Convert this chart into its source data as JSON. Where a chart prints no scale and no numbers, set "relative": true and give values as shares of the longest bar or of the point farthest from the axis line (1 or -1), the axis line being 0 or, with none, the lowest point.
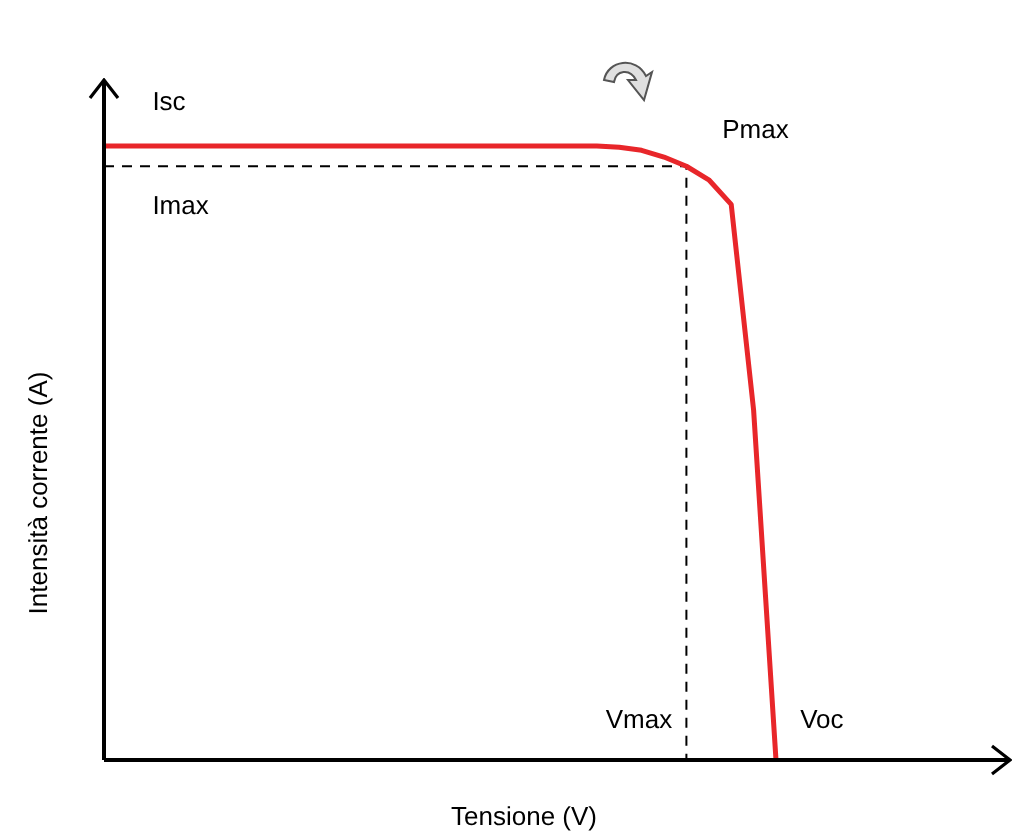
{
  "chart_data": {
    "type": "line",
    "relative": true,
    "xlabel": "Tensione (V)",
    "ylabel": "Intensità corrente (A)",
    "legend": false,
    "marker": "none",
    "categories": [
      null,
      null,
      null,
      null,
      null,
      null,
      null,
      null,
      null,
      null,
      null,
      null,
      null,
      null,
      null,
      null,
      null,
      null,
      null,
      null,
      null,
      null,
      null,
      null,
      null,
      null,
      null,
      null,
      null,
      null,
      null,
      null,
      null,
      null,
      null,
      null,
      null,
      null,
      null,
      null,
      null
    ],
    "series": [
      {
        "color": "#e8262a",
        "line_style": "solid",
        "values": [
          1,
          1,
          1,
          1,
          1,
          1,
          1,
          1,
          1,
          1,
          1,
          1,
          1,
          1,
          1,
          1,
          1,
          1,
          1,
          1,
          1,
          1,
          1,
          0.998,
          0.993,
          0.982,
          0.967,
          0.945,
          0.905,
          0.57,
          0,
          null,
          null,
          null,
          null,
          null,
          null,
          null,
          null,
          null,
          null
        ]
      },
      {
        "type": "step",
        "color": "#000000",
        "line_style": "dashed",
        "values": [
          0.967,
          0.967,
          0.967,
          0.967,
          0.967,
          0.967,
          0.967,
          0.967,
          0.967,
          0.967,
          0.967,
          0.967,
          0.967,
          0.967,
          0.967,
          0.967,
          0.967,
          0.967,
          0.967,
          0.967,
          0.967,
          0.967,
          0.967,
          0.967,
          0.967,
          0.967,
          0.967,
          0,
          null,
          null,
          null,
          null,
          null,
          null,
          null,
          null,
          null,
          null,
          null,
          null,
          null
        ]
      }
    ],
    "annotations": [
      "Isc",
      "Imax",
      "Pmax",
      "Vmax",
      "Voc"
    ]
  }
}
